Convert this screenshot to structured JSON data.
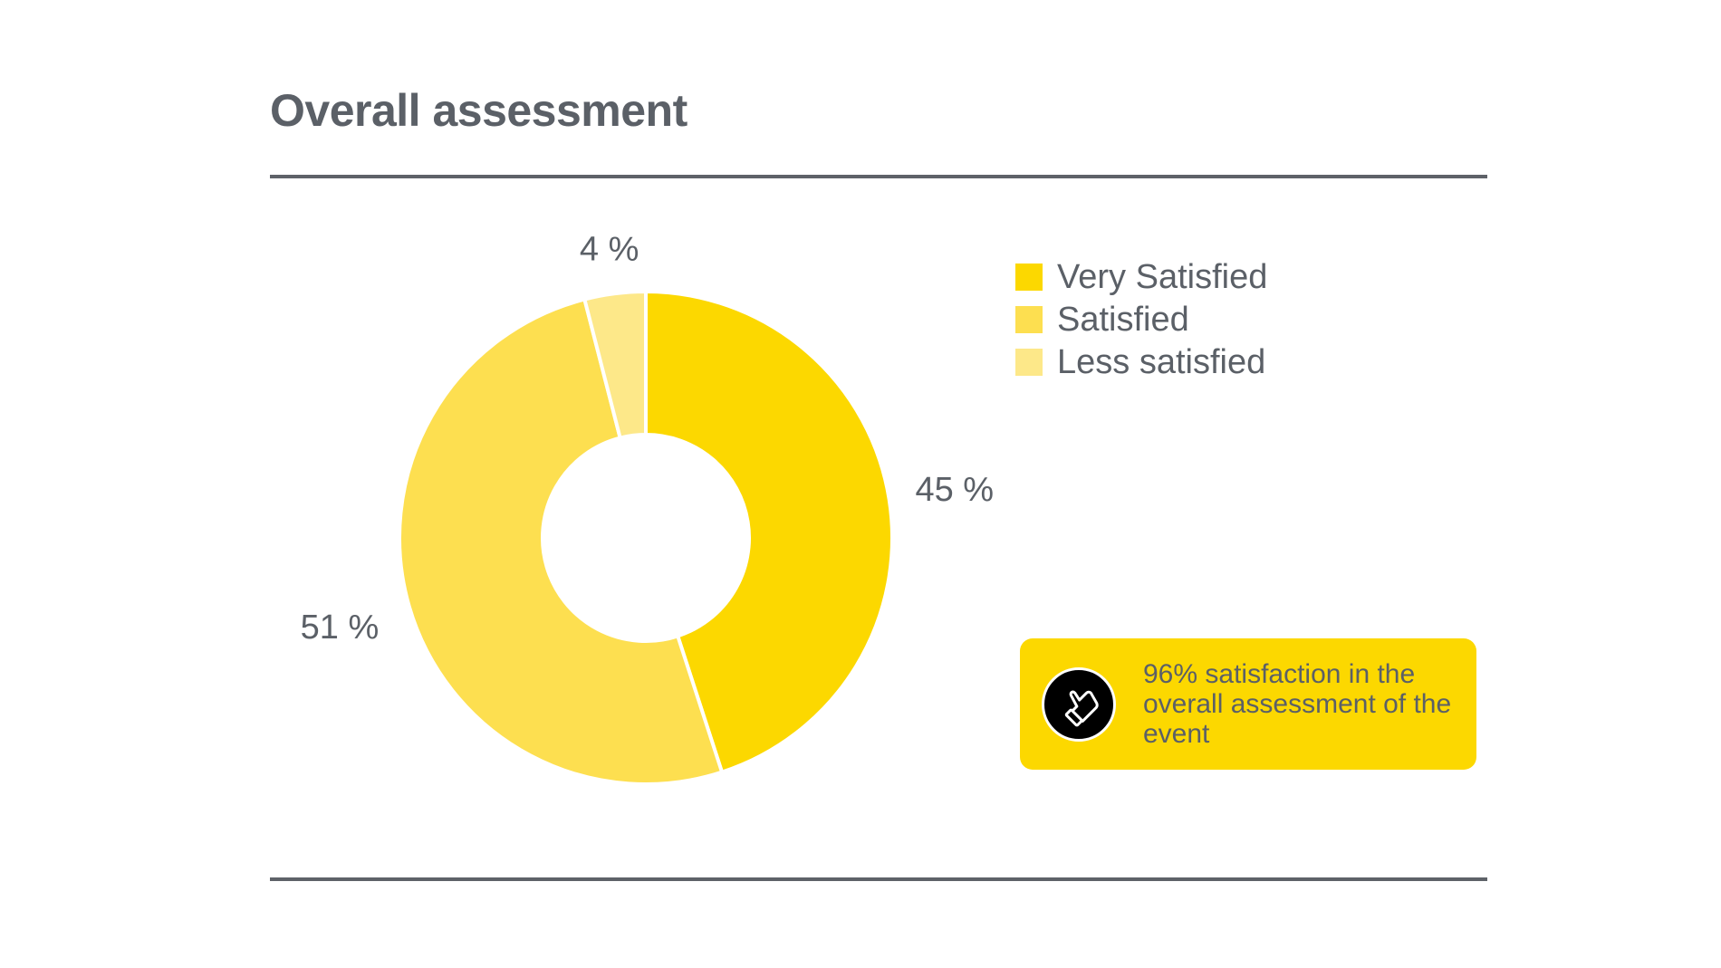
{
  "title": "Overall assessment",
  "chart_data": {
    "type": "pie",
    "variant": "donut",
    "categories": [
      "Very Satisfied",
      "Satisfied",
      "Less satisfied"
    ],
    "values": [
      45,
      51,
      4
    ],
    "data_labels": [
      "45 %",
      "51 %",
      "4 %"
    ],
    "colors": [
      "#fcd800",
      "#fddf50",
      "#fde889"
    ],
    "start": "12 o'clock",
    "direction": "clockwise",
    "legend_position": "top-right"
  },
  "callout": {
    "text": "96% satisfaction in the overall assessment of the event",
    "icon": "thumbs-up-icon",
    "background": "#fcd800"
  },
  "colors": {
    "text": "#5b6067",
    "rule": "#5e6268"
  }
}
